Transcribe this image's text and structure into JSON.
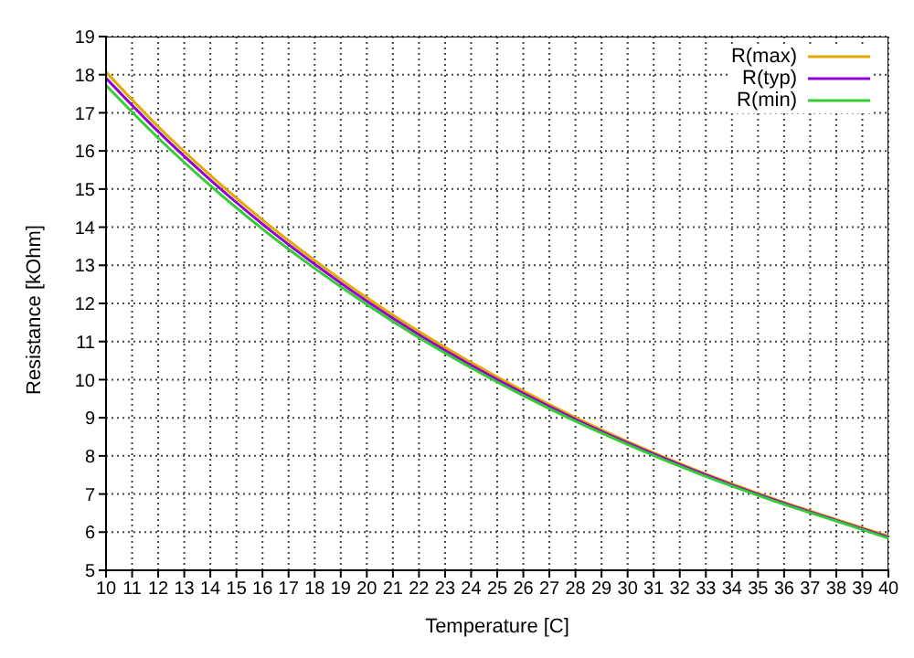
{
  "chart_data": {
    "type": "line",
    "xlabel": "Temperature [C]",
    "ylabel": "Resistance [kOhm]",
    "x": [
      10,
      12,
      14,
      16,
      18,
      20,
      22,
      24,
      26,
      28,
      30,
      32,
      34,
      36,
      38,
      40
    ],
    "series": [
      {
        "name": "R(max)",
        "color": "#e6a800",
        "values": [
          18.07,
          16.64,
          15.36,
          14.19,
          13.13,
          12.15,
          11.26,
          10.45,
          9.7,
          9.01,
          8.38,
          7.8,
          7.27,
          6.78,
          6.33,
          5.9
        ]
      },
      {
        "name": "R(typ)",
        "color": "#9400d3",
        "values": [
          17.91,
          16.51,
          15.24,
          14.08,
          13.03,
          12.06,
          11.18,
          10.38,
          9.64,
          8.96,
          8.34,
          7.77,
          7.24,
          6.76,
          6.31,
          5.87
        ]
      },
      {
        "name": "R(min)",
        "color": "#33cc33",
        "values": [
          17.72,
          16.34,
          15.09,
          13.95,
          12.92,
          11.97,
          11.1,
          10.31,
          9.58,
          8.91,
          8.3,
          7.73,
          7.21,
          6.73,
          6.29,
          5.84
        ]
      }
    ],
    "xlim": [
      10,
      40
    ],
    "xticks": [
      10,
      11,
      12,
      13,
      14,
      15,
      16,
      17,
      18,
      19,
      20,
      21,
      22,
      23,
      24,
      25,
      26,
      27,
      28,
      29,
      30,
      31,
      32,
      33,
      34,
      35,
      36,
      37,
      38,
      39,
      40
    ],
    "ylim": [
      5,
      19
    ],
    "yticks": [
      5,
      6,
      7,
      8,
      9,
      10,
      11,
      12,
      13,
      14,
      15,
      16,
      17,
      18,
      19
    ],
    "grid": true,
    "legend": "top right",
    "marker": "none",
    "line_style": "solid"
  }
}
